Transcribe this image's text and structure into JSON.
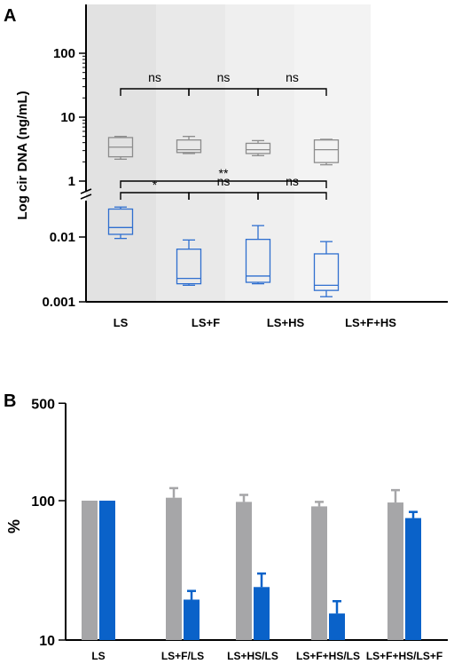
{
  "panel_a": {
    "letter": "A",
    "ylabel": "Log cir DNA (ng/mL)",
    "yticks": [
      "100",
      "10",
      "1",
      "0.01",
      "0.001"
    ],
    "categories": [
      "LS",
      "LS+F",
      "LS+HS",
      "LS+F+HS"
    ],
    "brackets": [
      {
        "from": "LS",
        "to": "LS+F",
        "label": "ns"
      },
      {
        "from": "LS+F",
        "to": "LS+HS",
        "label": "ns"
      },
      {
        "from": "LS+HS",
        "to": "LS+F+HS",
        "label": "ns"
      },
      {
        "from": "LS",
        "to": "LS+F+HS",
        "label": "**"
      },
      {
        "from": "LS",
        "to": "LS+F",
        "label": "*"
      },
      {
        "from": "LS+F",
        "to": "LS+HS",
        "label": "ns"
      },
      {
        "from": "LS+HS",
        "to": "LS+F+HS",
        "label": "ns"
      }
    ]
  },
  "panel_b": {
    "letter": "B",
    "ylabel": "%",
    "yticks": [
      "500",
      "100",
      "10"
    ],
    "categories": [
      "LS",
      "LS+F/LS",
      "LS+HS/LS",
      "LS+F+HS/LS",
      "LS+F+HS/LS+F"
    ]
  },
  "colors": {
    "gray_series": "#a6a6a8",
    "blue_series": "#0a62c9",
    "shade_1": "#e2e2e2",
    "shade_2": "#e9e9e9",
    "shade_3": "#efefef",
    "shade_4": "#f3f3f3"
  },
  "chart_data": [
    {
      "type": "box",
      "scale": "log",
      "axis_break": [
        1,
        0.03
      ],
      "ylim": [
        0.001,
        100
      ],
      "categories": [
        "LS",
        "LS+F",
        "LS+HS",
        "LS+F+HS"
      ],
      "series": [
        {
          "color": "#8c8c8c",
          "boxes": [
            {
              "min": 2.2,
              "q1": 2.4,
              "median": 3.4,
              "q3": 4.8,
              "max": 5.0
            },
            {
              "min": 2.7,
              "q1": 2.8,
              "median": 3.1,
              "q3": 4.4,
              "max": 5.0
            },
            {
              "min": 2.5,
              "q1": 2.7,
              "median": 3.1,
              "q3": 3.9,
              "max": 4.3
            },
            {
              "min": 1.8,
              "q1": 1.95,
              "median": 3.1,
              "q3": 4.4,
              "max": 4.5
            }
          ]
        },
        {
          "color": "#2f6fcf",
          "boxes": [
            {
              "min": 0.0095,
              "q1": 0.011,
              "median": 0.014,
              "q3": 0.027,
              "max": 0.029
            },
            {
              "min": 0.0018,
              "q1": 0.0019,
              "median": 0.0023,
              "q3": 0.0065,
              "max": 0.009
            },
            {
              "min": 0.0019,
              "q1": 0.002,
              "median": 0.0025,
              "q3": 0.0092,
              "max": 0.015
            },
            {
              "min": 0.0012,
              "q1": 0.0015,
              "median": 0.0018,
              "q3": 0.0055,
              "max": 0.0085
            }
          ]
        }
      ]
    },
    {
      "type": "bar",
      "scale": "log",
      "ylim": [
        10,
        500
      ],
      "categories": [
        "LS",
        "LS+F/LS",
        "LS+HS/LS",
        "LS+F+HS/LS",
        "LS+F+HS/LS+F"
      ],
      "series": [
        {
          "color": "#a6a6a8",
          "values": [
            100,
            105,
            98,
            91,
            97
          ],
          "errors": [
            0,
            18,
            12,
            7,
            22
          ]
        },
        {
          "color": "#0a62c9",
          "values": [
            100,
            19.5,
            24,
            15.5,
            75
          ],
          "errors": [
            0,
            3,
            6,
            3.5,
            8
          ]
        }
      ]
    }
  ]
}
